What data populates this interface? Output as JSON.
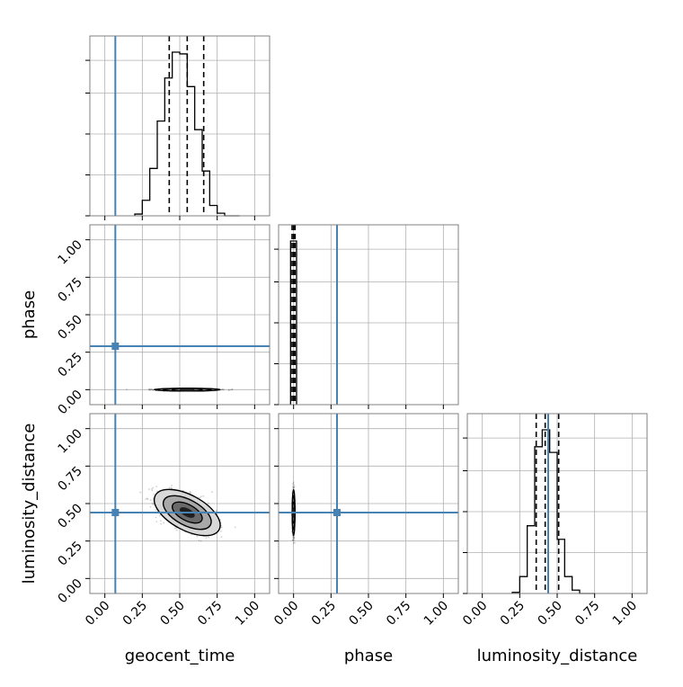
{
  "chart_data": {
    "type": "corner",
    "parameters": [
      "geocent_time",
      "phase",
      "luminosity_distance"
    ],
    "xlabels": [
      "geocent_time",
      "phase",
      "luminosity_distance"
    ],
    "ylabels": [
      "phase",
      "luminosity_distance"
    ],
    "tick_labels": [
      "0.00",
      "0.25",
      "0.50",
      "0.75",
      "1.00"
    ],
    "axis_range": [
      -0.1,
      1.1
    ],
    "grid": true,
    "injection_color": "#4682b4",
    "injected_values": {
      "geocent_time": 0.07,
      "phase": 0.29,
      "luminosity_distance": 0.44
    },
    "histograms": [
      {
        "parameter": "geocent_time",
        "bin_edges": [
          0.2,
          0.25,
          0.3,
          0.35,
          0.4,
          0.45,
          0.5,
          0.55,
          0.6,
          0.65,
          0.7,
          0.75,
          0.8,
          0.85,
          0.9
        ],
        "counts": [
          2,
          18,
          55,
          110,
          160,
          190,
          188,
          150,
          100,
          52,
          12,
          3,
          0,
          0
        ],
        "quantile_lines": [
          0.43,
          0.55,
          0.66
        ]
      },
      {
        "parameter": "phase",
        "bin_edges": [
          -0.02,
          0.0,
          0.02
        ],
        "counts": [
          100,
          100
        ],
        "quantile_lines": [
          -0.01,
          0.0,
          0.01
        ]
      },
      {
        "parameter": "luminosity_distance",
        "bin_edges": [
          0.2,
          0.25,
          0.3,
          0.35,
          0.4,
          0.45,
          0.5,
          0.55,
          0.6,
          0.65,
          0.7,
          0.75
        ],
        "counts": [
          1,
          15,
          60,
          130,
          145,
          125,
          48,
          15,
          3,
          0,
          0
        ],
        "quantile_lines": [
          0.36,
          0.42,
          0.51
        ]
      }
    ],
    "joint_panels": [
      {
        "x": "geocent_time",
        "y": "phase",
        "center": [
          0.55,
          0.0
        ],
        "sigma": [
          0.1,
          0.003
        ],
        "rho": 0
      },
      {
        "x": "geocent_time",
        "y": "luminosity_distance",
        "center": [
          0.55,
          0.44
        ],
        "sigma": [
          0.1,
          0.07
        ],
        "rho": -0.55
      },
      {
        "x": "phase",
        "y": "luminosity_distance",
        "center": [
          0.0,
          0.44
        ],
        "sigma": [
          0.004,
          0.07
        ],
        "rho": 0
      }
    ]
  }
}
